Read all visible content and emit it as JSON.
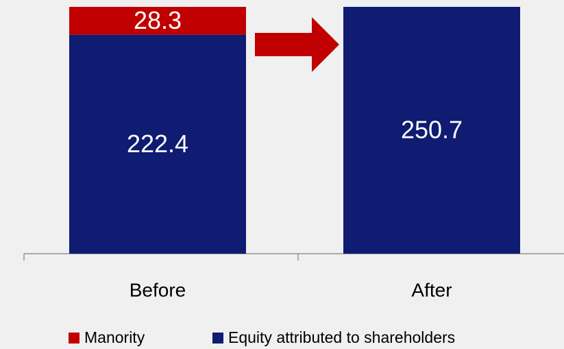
{
  "chart_data": {
    "type": "stacked_bar",
    "categories": [
      "Before",
      "After"
    ],
    "series": [
      {
        "name": "Manority",
        "color": "#c00000",
        "values": [
          28.3,
          null
        ]
      },
      {
        "name": "Equity attributed to shareholders",
        "color": "#0f1c72",
        "values": [
          222.4,
          250.7
        ]
      }
    ],
    "legend": "bottom"
  }
}
